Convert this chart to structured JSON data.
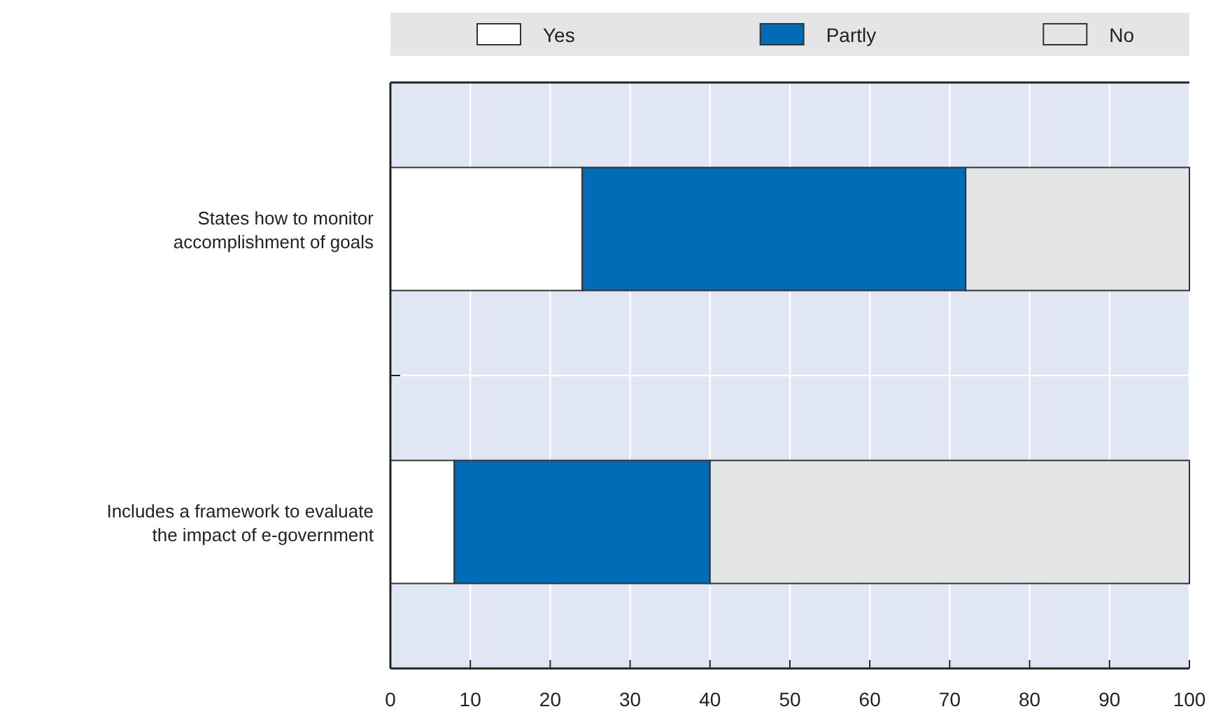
{
  "chart_data": {
    "type": "bar",
    "orientation": "horizontal",
    "stacked": true,
    "categories": [
      "States how to monitor accomplishment of goals",
      "Includes a framework to evaluate the impact of e-government"
    ],
    "series": [
      {
        "name": "Yes",
        "color": "#ffffff",
        "values": [
          24,
          8
        ]
      },
      {
        "name": "Partly",
        "color": "#006bb6",
        "values": [
          48,
          32
        ]
      },
      {
        "name": "No",
        "color": "#e4e5e7",
        "values": [
          28,
          60
        ]
      }
    ],
    "xlim": [
      0,
      100
    ],
    "xticks": [
      0,
      10,
      20,
      30,
      40,
      50,
      60,
      70,
      80,
      90,
      100
    ],
    "grid": "x",
    "legend": "top"
  }
}
